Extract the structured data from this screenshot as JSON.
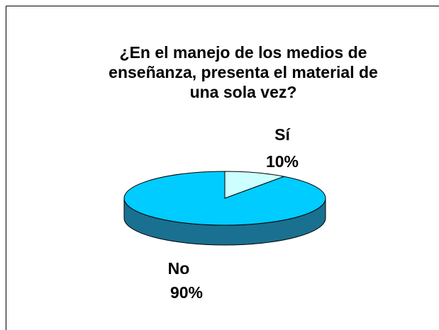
{
  "chart_data": {
    "type": "pie",
    "title": [
      "¿En el manejo de los medios de",
      "enseñanza, presenta el material de",
      "una sola vez?"
    ],
    "categories": [
      "Sí",
      "No"
    ],
    "values": [
      10,
      90
    ],
    "value_labels": [
      "10%",
      "90%"
    ],
    "colors": [
      "#ccffff",
      "#00ccff"
    ],
    "side_color": "#1a7090"
  }
}
